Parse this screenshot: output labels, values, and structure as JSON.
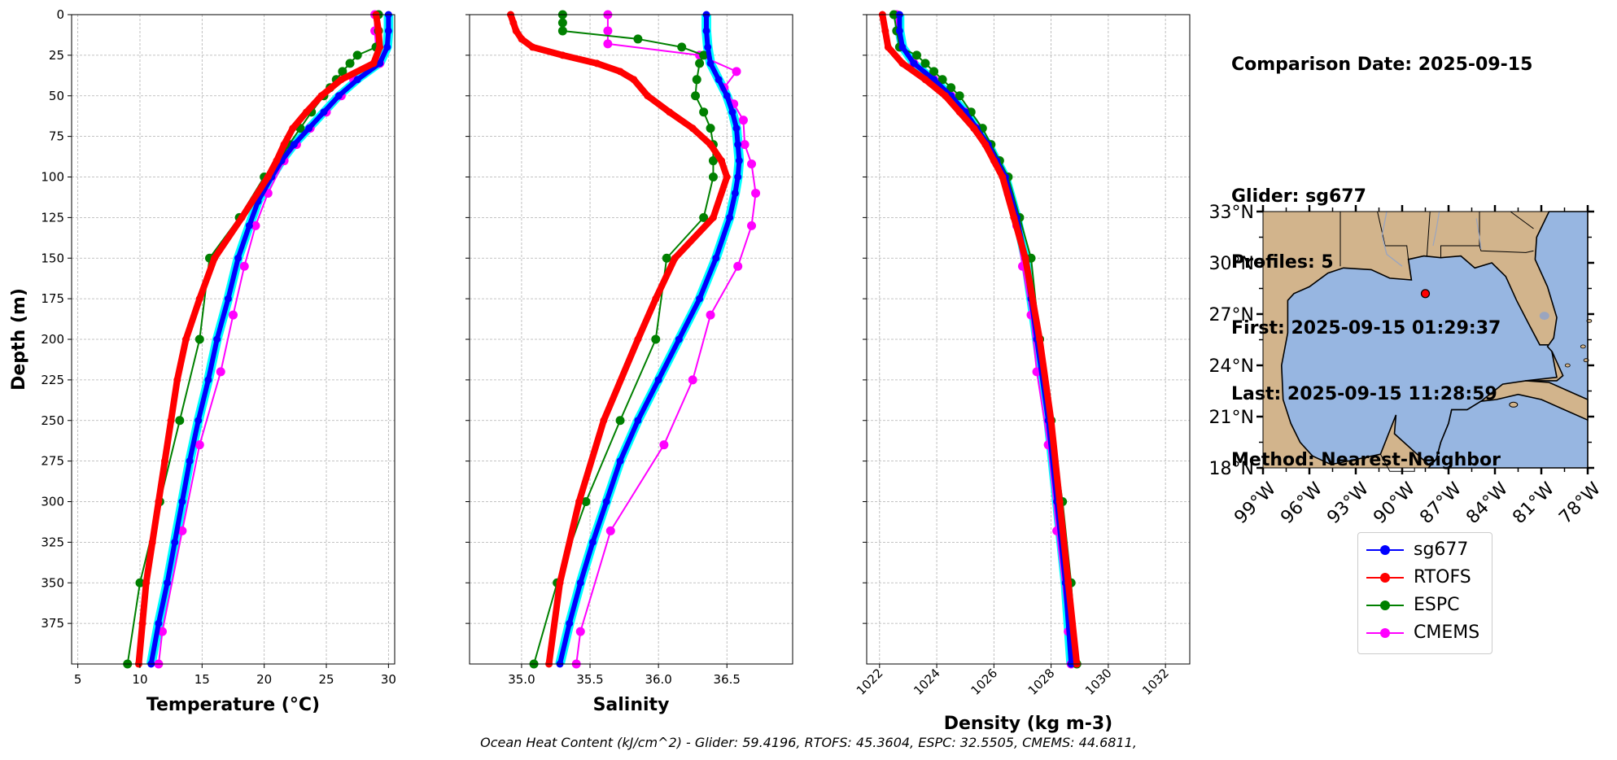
{
  "chart_data": [
    {
      "type": "line",
      "ylabel": "Depth (m)",
      "xlabel": "Temperature (°C)",
      "xlim": [
        4.5,
        30.5
      ],
      "ylim": [
        400,
        0
      ],
      "xticks": [
        5,
        10,
        15,
        20,
        25,
        30
      ],
      "yticks": [
        0,
        25,
        50,
        75,
        100,
        125,
        150,
        175,
        200,
        225,
        250,
        275,
        300,
        325,
        350,
        375
      ],
      "grid": true,
      "series": [
        {
          "name": "sg677",
          "color": "#0000ff",
          "depth": [
            0,
            10,
            20,
            30,
            40,
            50,
            60,
            70,
            80,
            90,
            100,
            115,
            130,
            150,
            175,
            200,
            225,
            250,
            275,
            300,
            325,
            350,
            375,
            400
          ],
          "values": [
            30.0,
            30.0,
            29.9,
            29.3,
            27.5,
            26.0,
            24.8,
            23.6,
            22.4,
            21.4,
            20.6,
            19.5,
            18.8,
            17.9,
            17.1,
            16.2,
            15.5,
            14.7,
            14.0,
            13.4,
            12.8,
            12.2,
            11.5,
            10.9
          ]
        },
        {
          "name": "RTOFS",
          "color": "#ff0000",
          "depth": [
            0,
            10,
            20,
            30,
            40,
            50,
            60,
            70,
            80,
            90,
            100,
            125,
            150,
            175,
            200,
            225,
            250,
            275,
            300,
            325,
            350,
            375,
            400
          ],
          "values": [
            29.0,
            29.2,
            29.3,
            28.8,
            26.2,
            24.6,
            23.4,
            22.3,
            21.6,
            21.0,
            20.3,
            18.2,
            16.0,
            14.8,
            13.7,
            13.0,
            12.5,
            12.0,
            11.5,
            11.0,
            10.5,
            10.2,
            9.9
          ]
        },
        {
          "name": "ESPC",
          "color": "#008000",
          "depth": [
            0,
            10,
            20,
            25,
            30,
            35,
            40,
            45,
            50,
            60,
            70,
            80,
            90,
            100,
            125,
            150,
            200,
            250,
            300,
            350,
            400
          ],
          "values": [
            29.2,
            29.2,
            29.0,
            27.5,
            26.9,
            26.3,
            25.8,
            25.3,
            24.8,
            23.8,
            22.9,
            22.0,
            21.2,
            20.0,
            18.0,
            15.6,
            14.8,
            13.2,
            11.6,
            10.0,
            9.0
          ]
        },
        {
          "name": "CMEMS",
          "color": "#ff00ff",
          "depth": [
            0,
            10,
            20,
            30,
            40,
            50,
            60,
            70,
            80,
            90,
            110,
            130,
            155,
            185,
            220,
            265,
            318,
            380,
            400
          ],
          "values": [
            28.9,
            28.9,
            29.0,
            29.3,
            27.2,
            26.2,
            25.0,
            23.7,
            22.6,
            21.6,
            20.3,
            19.3,
            18.4,
            17.5,
            16.5,
            14.8,
            13.4,
            11.8,
            11.5
          ]
        }
      ]
    },
    {
      "type": "line",
      "xlabel": "Salinity",
      "xlim": [
        34.62,
        36.98
      ],
      "ylim": [
        400,
        0
      ],
      "xticks": [
        35.0,
        35.5,
        36.0,
        36.5
      ],
      "grid": true,
      "series": [
        {
          "name": "sg677",
          "color": "#0000ff",
          "depth": [
            0,
            10,
            20,
            30,
            40,
            50,
            60,
            70,
            80,
            90,
            100,
            110,
            125,
            150,
            175,
            200,
            225,
            250,
            275,
            300,
            325,
            350,
            375,
            400
          ],
          "values": [
            36.35,
            36.35,
            36.36,
            36.38,
            36.44,
            36.5,
            36.54,
            36.57,
            36.58,
            36.59,
            36.58,
            36.56,
            36.52,
            36.42,
            36.3,
            36.15,
            36.0,
            35.85,
            35.72,
            35.62,
            35.52,
            35.43,
            35.35,
            35.28
          ]
        },
        {
          "name": "RTOFS",
          "color": "#ff0000",
          "depth": [
            0,
            5,
            10,
            15,
            20,
            25,
            30,
            35,
            40,
            50,
            60,
            70,
            80,
            90,
            100,
            125,
            150,
            175,
            200,
            250,
            300,
            350,
            400
          ],
          "values": [
            34.92,
            34.94,
            34.96,
            35.0,
            35.08,
            35.3,
            35.55,
            35.72,
            35.82,
            35.92,
            36.08,
            36.25,
            36.38,
            36.46,
            36.5,
            36.4,
            36.12,
            35.98,
            35.85,
            35.6,
            35.42,
            35.28,
            35.2
          ]
        },
        {
          "name": "ESPC",
          "color": "#008000",
          "depth": [
            0,
            5,
            10,
            15,
            20,
            25,
            30,
            40,
            50,
            60,
            70,
            80,
            90,
            100,
            125,
            150,
            200,
            250,
            300,
            350,
            400
          ],
          "values": [
            35.3,
            35.3,
            35.3,
            35.85,
            36.17,
            36.33,
            36.3,
            36.28,
            36.27,
            36.33,
            36.38,
            36.4,
            36.4,
            36.4,
            36.33,
            36.06,
            35.98,
            35.72,
            35.47,
            35.26,
            35.09
          ]
        },
        {
          "name": "CMEMS",
          "color": "#ff00ff",
          "depth": [
            0,
            10,
            18,
            25,
            35,
            45,
            55,
            65,
            80,
            92,
            110,
            130,
            155,
            185,
            225,
            265,
            318,
            380,
            400
          ],
          "values": [
            35.63,
            35.63,
            35.63,
            36.3,
            36.57,
            36.48,
            36.55,
            36.62,
            36.63,
            36.68,
            36.71,
            36.68,
            36.58,
            36.38,
            36.25,
            36.04,
            35.65,
            35.43,
            35.4
          ]
        }
      ]
    },
    {
      "type": "line",
      "xlabel": "Density (kg m-3)",
      "xlim": [
        1021.55,
        1032.85
      ],
      "ylim": [
        400,
        0
      ],
      "xticks": [
        1022,
        1024,
        1026,
        1028,
        1030,
        1032
      ],
      "grid": true,
      "series": [
        {
          "name": "sg677",
          "color": "#0000ff",
          "depth": [
            0,
            10,
            20,
            30,
            40,
            50,
            60,
            70,
            80,
            90,
            100,
            125,
            150,
            175,
            200,
            250,
            300,
            350,
            400
          ],
          "values": [
            1022.7,
            1022.7,
            1022.8,
            1023.2,
            1023.9,
            1024.5,
            1025.0,
            1025.4,
            1025.8,
            1026.1,
            1026.4,
            1026.8,
            1027.1,
            1027.3,
            1027.5,
            1027.9,
            1028.2,
            1028.5,
            1028.7
          ]
        },
        {
          "name": "RTOFS",
          "color": "#ff0000",
          "depth": [
            0,
            10,
            20,
            30,
            40,
            50,
            60,
            70,
            80,
            90,
            100,
            125,
            150,
            200,
            250,
            300,
            350,
            400
          ],
          "values": [
            1022.1,
            1022.2,
            1022.3,
            1022.8,
            1023.6,
            1024.3,
            1024.8,
            1025.3,
            1025.7,
            1026.0,
            1026.3,
            1026.7,
            1027.1,
            1027.6,
            1028.0,
            1028.3,
            1028.6,
            1028.9
          ]
        },
        {
          "name": "ESPC",
          "color": "#008000",
          "depth": [
            0,
            10,
            20,
            25,
            30,
            35,
            40,
            45,
            50,
            60,
            70,
            80,
            90,
            100,
            125,
            150,
            200,
            250,
            300,
            350,
            400
          ],
          "values": [
            1022.5,
            1022.6,
            1022.7,
            1023.3,
            1023.6,
            1023.9,
            1024.2,
            1024.5,
            1024.8,
            1025.2,
            1025.6,
            1025.9,
            1026.2,
            1026.5,
            1026.9,
            1027.3,
            1027.6,
            1028.0,
            1028.4,
            1028.7,
            1028.9
          ]
        },
        {
          "name": "CMEMS",
          "color": "#ff00ff",
          "depth": [
            0,
            10,
            20,
            30,
            40,
            50,
            60,
            70,
            80,
            92,
            110,
            130,
            155,
            185,
            220,
            265,
            318,
            380,
            400
          ],
          "values": [
            1022.6,
            1022.6,
            1022.7,
            1023.2,
            1023.9,
            1024.5,
            1025.0,
            1025.4,
            1025.8,
            1026.1,
            1026.5,
            1026.8,
            1027.0,
            1027.3,
            1027.5,
            1027.9,
            1028.2,
            1028.6,
            1028.7
          ]
        }
      ]
    }
  ],
  "info": {
    "comparison_date": "Comparison Date: 2025-09-15",
    "glider": "Glider: sg677",
    "profiles": "Profiles: 5",
    "first": "First: 2025-09-15 01:29:37",
    "last": "Last: 2025-09-15 11:28:59",
    "method": "Method: Nearest-Neighbor"
  },
  "map": {
    "lat_ticks": [
      "33°N",
      "30°N",
      "27°N",
      "24°N",
      "21°N",
      "18°N"
    ],
    "lon_ticks": [
      "99°W",
      "96°W",
      "93°W",
      "90°W",
      "87°W",
      "84°W",
      "81°W",
      "78°W"
    ],
    "lat_range": [
      18,
      33
    ],
    "lon_range": [
      -99,
      -78
    ],
    "glider_position": {
      "lon": -88.5,
      "lat": 28.2
    },
    "land_color": "#d2b48c",
    "ocean_color": "#97b6e1"
  },
  "legend": [
    {
      "label": "sg677",
      "color": "#0000ff"
    },
    {
      "label": "RTOFS",
      "color": "#ff0000"
    },
    {
      "label": "ESPC",
      "color": "#008000"
    },
    {
      "label": "CMEMS",
      "color": "#ff00ff"
    }
  ],
  "footer": "Ocean Heat Content (kJ/cm^2) - Glider: 59.4196,  RTOFS: 45.3604,  ESPC: 32.5505,  CMEMS: 44.6811,"
}
